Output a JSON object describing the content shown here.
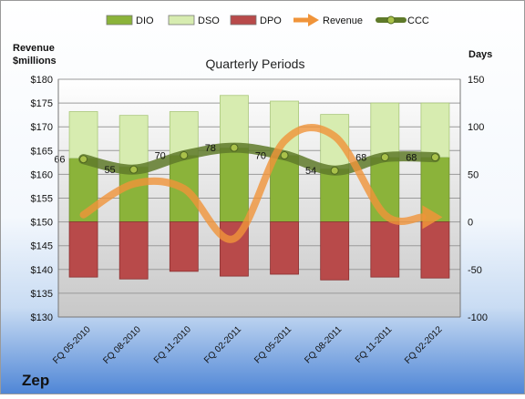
{
  "chart_data": {
    "type": "bar",
    "title": "Quarterly Periods",
    "company": "Zep",
    "left_axis": {
      "label_line1": "Revenue",
      "label_line2": "$millions",
      "min": 130,
      "max": 180,
      "step": 5,
      "format": "$"
    },
    "right_axis": {
      "label": "Days",
      "min": -100,
      "max": 150,
      "step": 50
    },
    "categories": [
      "FQ 05-2010",
      "FQ 08-2010",
      "FQ 11-2010",
      "FQ 02-2011",
      "FQ 05-2011",
      "FQ 08-2011",
      "FQ 11-2011",
      "FQ 02-2012"
    ],
    "series": [
      {
        "name": "DIO",
        "kind": "stacked-bar",
        "axis": "right",
        "color": "#8bb33a",
        "values": [
          67,
          58,
          70,
          78,
          70,
          56,
          68,
          68
        ]
      },
      {
        "name": "DSO",
        "kind": "stacked-bar",
        "axis": "right",
        "color": "#d7ecb0",
        "values": [
          49,
          54,
          46,
          55,
          57,
          57,
          57,
          57
        ]
      },
      {
        "name": "DPO",
        "kind": "stacked-bar",
        "axis": "right",
        "color": "#b84a4a",
        "values": [
          -58,
          -60,
          -52,
          -57,
          -55,
          -61,
          -58,
          -59
        ]
      },
      {
        "name": "Revenue",
        "kind": "line",
        "axis": "left",
        "color": "#f0943a",
        "values": [
          151.5,
          158,
          157,
          146.5,
          167,
          168,
          151.5,
          151
        ]
      },
      {
        "name": "CCC",
        "kind": "line",
        "axis": "right",
        "color": "#5f7a2a",
        "values": [
          66,
          55,
          70,
          78,
          70,
          54,
          68,
          68
        ]
      }
    ],
    "ccc_labels": [
      "66",
      "55",
      "70",
      "78",
      "70",
      "54",
      "68",
      "68"
    ],
    "legend_position": "top",
    "grid": true
  }
}
